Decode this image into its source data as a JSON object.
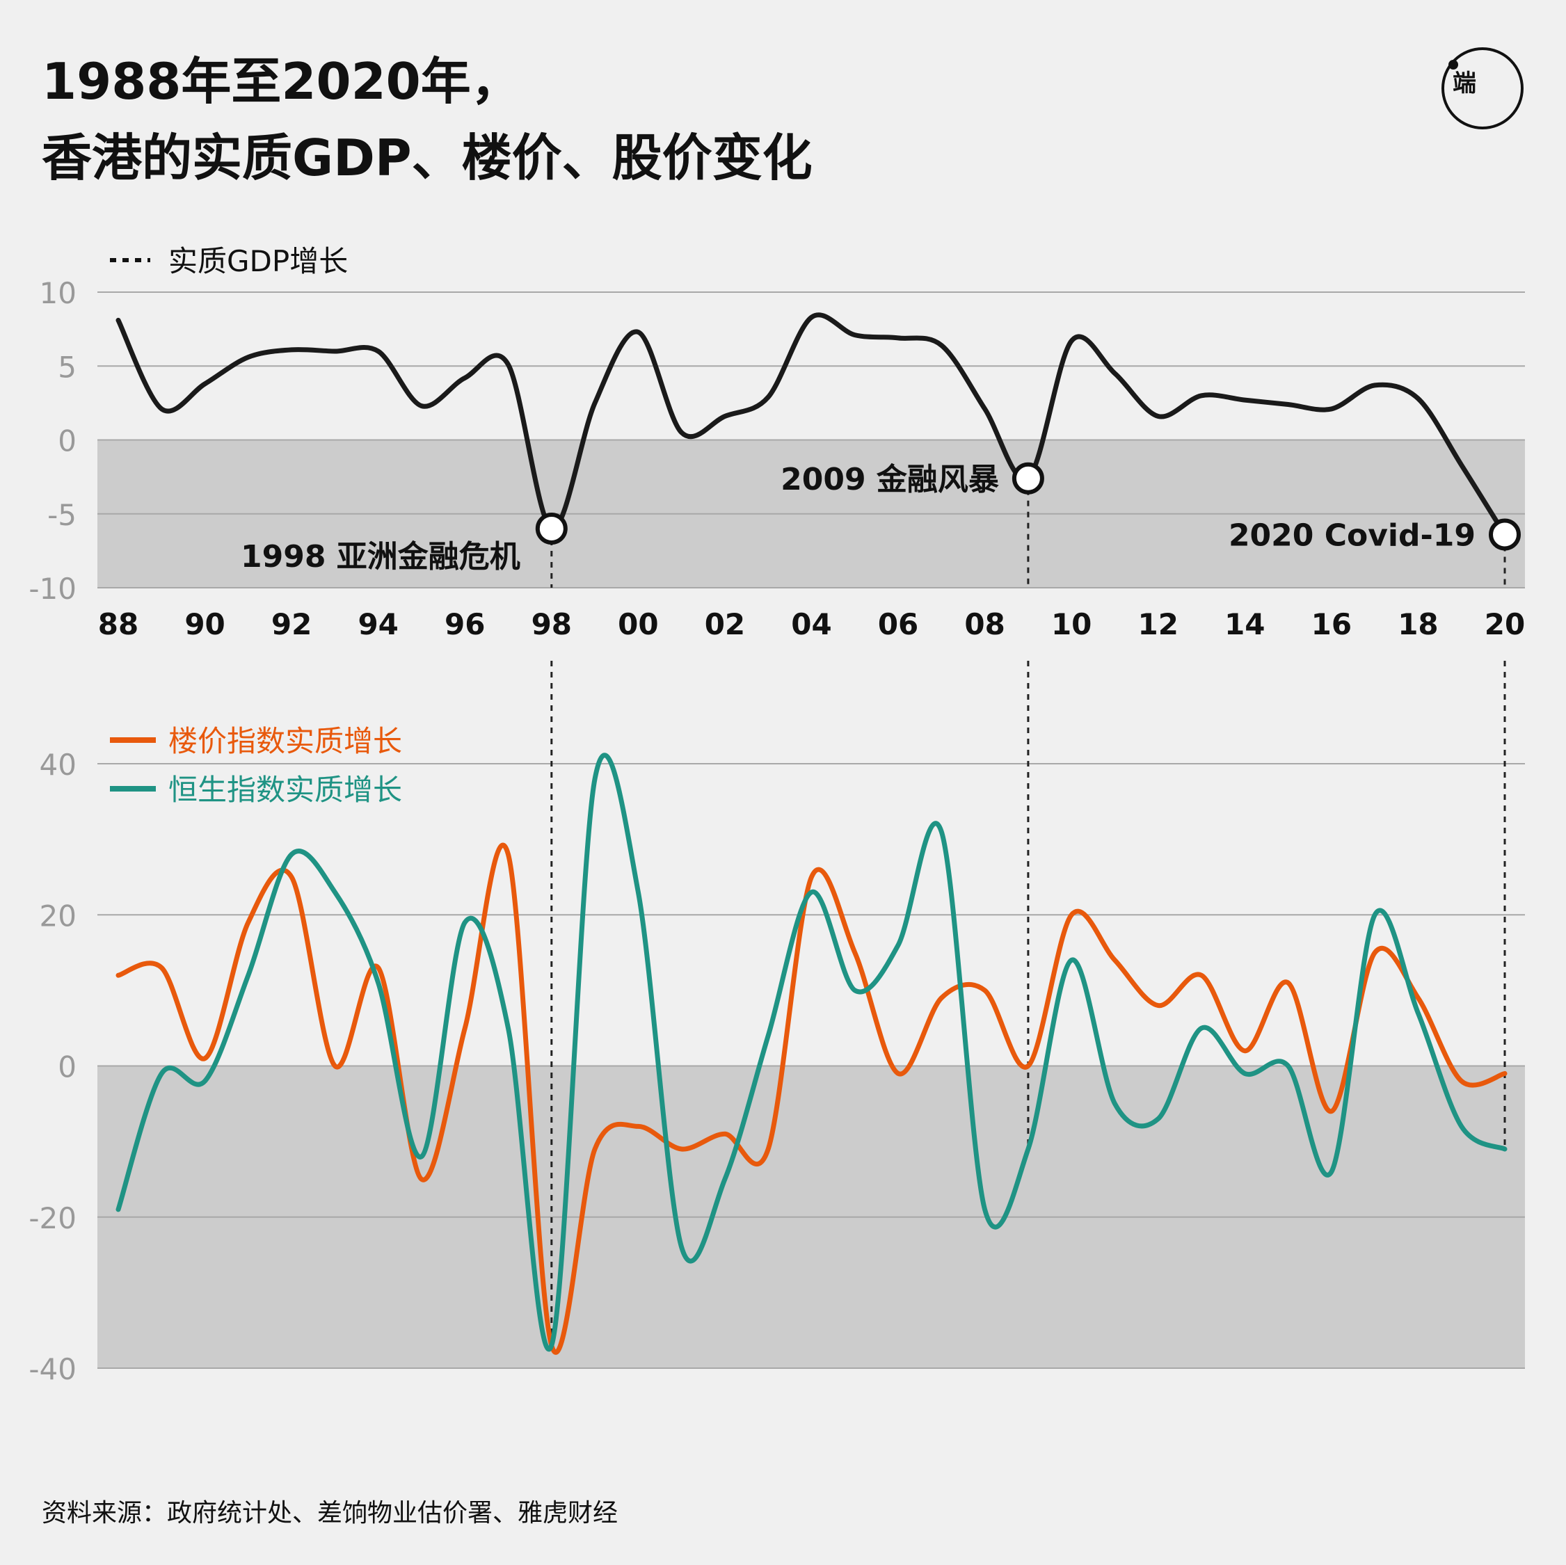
{
  "title": {
    "line1": "1988年至2020年，",
    "line2": "香港的实质GDP、楼价、股价变化"
  },
  "logo": {
    "icon": "initium-logo-icon",
    "text": "端"
  },
  "source": "资料来源：政府统计处、差饷物业估价署、雅虎财经",
  "colors": {
    "gdp": "#1a1a1a",
    "property": "#e8590c",
    "hsi": "#1f9384",
    "negative_band": "#cccccc",
    "grid": "#a8a8a8",
    "tick": "#999999"
  },
  "chart_data": [
    {
      "type": "line",
      "legend": [
        {
          "label": "实质GDP增长",
          "style": "dotted"
        }
      ],
      "x": [
        1988,
        1989,
        1990,
        1991,
        1992,
        1993,
        1994,
        1995,
        1996,
        1997,
        1998,
        1999,
        2000,
        2001,
        2002,
        2003,
        2004,
        2005,
        2006,
        2007,
        2008,
        2009,
        2010,
        2011,
        2012,
        2013,
        2014,
        2015,
        2016,
        2017,
        2018,
        2019,
        2020
      ],
      "series": [
        {
          "name": "实质GDP增长",
          "values": [
            8.1,
            2.1,
            3.8,
            5.6,
            6.1,
            6.0,
            6.0,
            2.3,
            4.2,
            5.1,
            -6.0,
            2.5,
            7.3,
            0.5,
            1.6,
            2.9,
            8.3,
            7.1,
            6.9,
            6.4,
            2.1,
            -2.6,
            6.7,
            4.5,
            1.6,
            3.0,
            2.7,
            2.4,
            2.1,
            3.7,
            2.8,
            -1.7,
            -6.4
          ]
        }
      ],
      "ylim": [
        -10,
        10
      ],
      "yticks": [
        10,
        5,
        0,
        -5,
        -10
      ],
      "ytick_labels": [
        "10",
        "5",
        "0",
        "-5",
        "-10"
      ],
      "xtick_labels": [
        "88",
        "90",
        "92",
        "94",
        "96",
        "98",
        "00",
        "02",
        "04",
        "06",
        "08",
        "10",
        "12",
        "14",
        "16",
        "18",
        "20"
      ],
      "annotations": [
        {
          "year": 1998,
          "value": -6.0,
          "label": "1998 亚洲金融危机",
          "position": "below-left"
        },
        {
          "year": 2009,
          "value": -2.6,
          "label": "2009 金融风暴",
          "position": "left"
        },
        {
          "year": 2020,
          "value": -6.4,
          "label": "2020 Covid-19",
          "position": "left"
        }
      ]
    },
    {
      "type": "line",
      "legend": [
        {
          "label": "楼价指数实质增长",
          "series": 0
        },
        {
          "label": "恒生指数实质增长",
          "series": 1
        }
      ],
      "x": [
        1988,
        1989,
        1990,
        1991,
        1992,
        1993,
        1994,
        1995,
        1996,
        1997,
        1998,
        1999,
        2000,
        2001,
        2002,
        2003,
        2004,
        2005,
        2006,
        2007,
        2008,
        2009,
        2010,
        2011,
        2012,
        2013,
        2014,
        2015,
        2016,
        2017,
        2018,
        2019,
        2020
      ],
      "series": [
        {
          "name": "楼价指数实质增长",
          "values": [
            12,
            13,
            1,
            19,
            25,
            0,
            13,
            -15,
            5,
            28,
            -37,
            -11,
            -8,
            -11,
            -9,
            -11,
            25,
            15,
            -1,
            9,
            10,
            0,
            20,
            14,
            8,
            12,
            2,
            11,
            -6,
            15,
            9,
            -2,
            -1
          ]
        },
        {
          "name": "恒生指数实质增长",
          "values": [
            -19,
            -1,
            -2,
            12,
            28,
            23,
            11,
            -12,
            19,
            5,
            -37,
            38,
            23,
            -24,
            -15,
            4,
            23,
            10,
            16,
            31,
            -19,
            -11,
            14,
            -5,
            -7,
            5,
            -1,
            0,
            -14,
            20,
            7,
            -8,
            -11
          ]
        }
      ],
      "ylim": [
        -40,
        40
      ],
      "yticks": [
        40,
        20,
        0,
        -20,
        -40
      ],
      "ytick_labels": [
        "40",
        "20",
        "0",
        "-20",
        "-40"
      ]
    }
  ]
}
